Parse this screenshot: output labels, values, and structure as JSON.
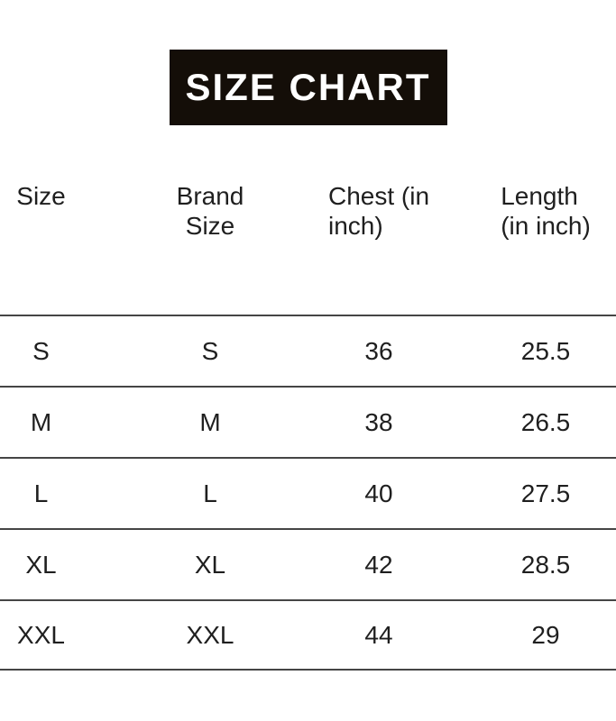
{
  "banner": {
    "title": "SIZE CHART",
    "bg_color": "#140e08",
    "text_color": "#ffffff"
  },
  "table": {
    "header_labels": [
      "Size",
      "Brand\nSize",
      "Chest (in\ninch)",
      "Length\n(in inch)"
    ]
  },
  "chart_data": {
    "type": "table",
    "title": "SIZE CHART",
    "columns": [
      "Size",
      "Brand Size",
      "Chest (in inch)",
      "Length (in inch)"
    ],
    "rows": [
      [
        "S",
        "S",
        "36",
        "25.5"
      ],
      [
        "M",
        "M",
        "38",
        "26.5"
      ],
      [
        "L",
        "L",
        "40",
        "27.5"
      ],
      [
        "XL",
        "XL",
        "42",
        "28.5"
      ],
      [
        "XXL",
        "XXL",
        "44",
        "29"
      ]
    ],
    "units": "inch",
    "rule_color": "#454545"
  }
}
